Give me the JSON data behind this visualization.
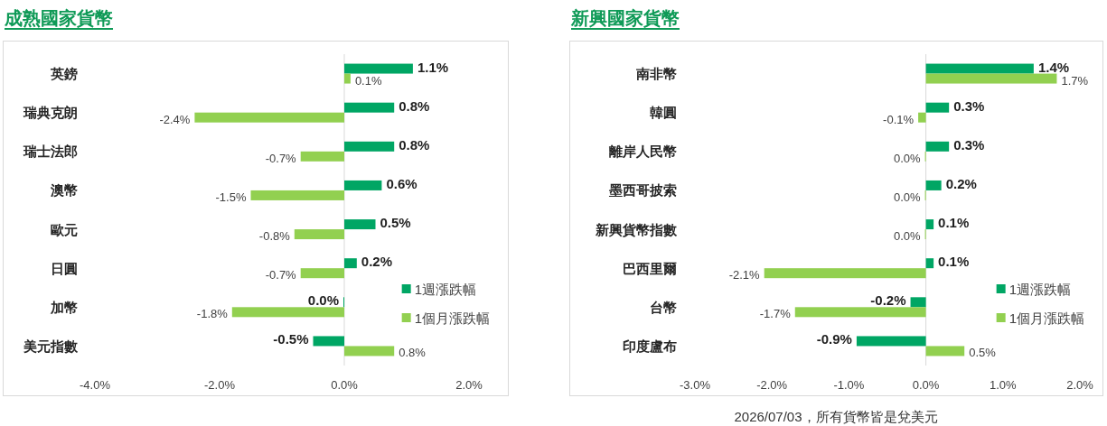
{
  "chart_data": [
    {
      "type": "bar",
      "orientation": "horizontal",
      "title": "成熟國家貨幣",
      "categories": [
        "英鎊",
        "瑞典克朗",
        "瑞士法郎",
        "澳幣",
        "歐元",
        "日圓",
        "加幣",
        "美元指數"
      ],
      "series": [
        {
          "name": "1週漲跌幅",
          "color": "#00a664",
          "values": [
            1.1,
            0.8,
            0.8,
            0.6,
            0.5,
            0.2,
            0.0,
            -0.5
          ],
          "value_labels": [
            "1.1%",
            "0.8%",
            "0.8%",
            "0.6%",
            "0.5%",
            "0.2%",
            "0.0%",
            "-0.5%"
          ]
        },
        {
          "name": "1個月漲跌幅",
          "color": "#92d050",
          "values": [
            0.1,
            -2.4,
            -0.7,
            -1.5,
            -0.8,
            -0.7,
            -1.8,
            0.8
          ],
          "value_labels": [
            "0.1%",
            "-2.4%",
            "-0.7%",
            "-1.5%",
            "-0.8%",
            "-0.7%",
            "-1.8%",
            "0.8%"
          ]
        }
      ],
      "xlim": [
        -4,
        2
      ],
      "xticks": [
        {
          "value": -4,
          "label": "-4.0%"
        },
        {
          "value": -2,
          "label": "-2.0%"
        },
        {
          "value": 0,
          "label": "0.0%"
        },
        {
          "value": 2,
          "label": "2.0%"
        }
      ],
      "legend": "bottom right"
    },
    {
      "type": "bar",
      "orientation": "horizontal",
      "title": "新興國家貨幣",
      "categories": [
        "南非幣",
        "韓圓",
        "離岸人民幣",
        "墨西哥披索",
        "新興貨幣指數",
        "巴西里爾",
        "台幣",
        "印度盧布"
      ],
      "series": [
        {
          "name": "1週漲跌幅",
          "color": "#00a664",
          "values": [
            1.4,
            0.3,
            0.3,
            0.2,
            0.1,
            0.1,
            -0.2,
            -0.9
          ],
          "value_labels": [
            "1.4%",
            "0.3%",
            "0.3%",
            "0.2%",
            "0.1%",
            "0.1%",
            "-0.2%",
            "-0.9%"
          ]
        },
        {
          "name": "1個月漲跌幅",
          "color": "#92d050",
          "values": [
            1.7,
            -0.1,
            0.0,
            0.0,
            0.0,
            -2.1,
            -1.7,
            0.5
          ],
          "value_labels": [
            "1.7%",
            "-0.1%",
            "0.0%",
            "0.0%",
            "0.0%",
            "-2.1%",
            "-1.7%",
            "0.5%"
          ]
        }
      ],
      "xlim": [
        -3,
        2
      ],
      "xticks": [
        {
          "value": -3,
          "label": "-3.0%"
        },
        {
          "value": -2,
          "label": "-2.0%"
        },
        {
          "value": -1,
          "label": "-1.0%"
        },
        {
          "value": 0,
          "label": "0.0%"
        },
        {
          "value": 1,
          "label": "1.0%"
        },
        {
          "value": 2,
          "label": "2.0%"
        }
      ],
      "legend": "bottom right",
      "annotations": [
        "2026/07/03，所有貨幣皆是兌美元"
      ]
    }
  ]
}
